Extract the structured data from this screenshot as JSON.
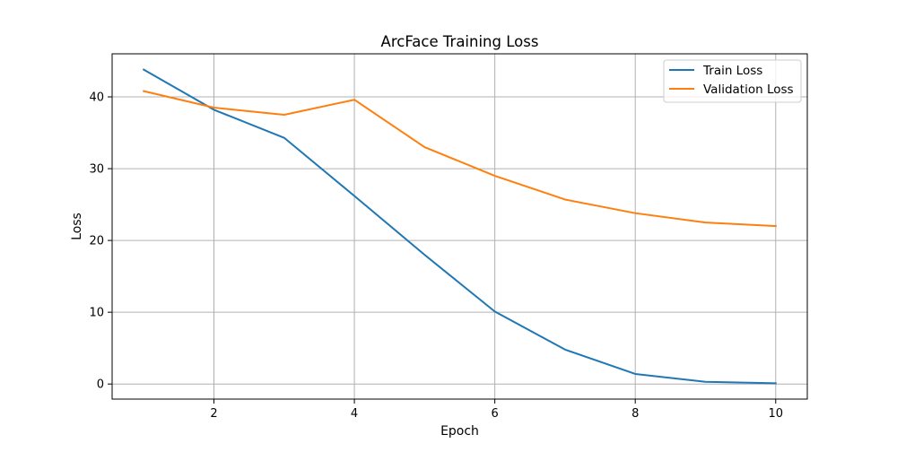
{
  "chart_data": {
    "type": "line",
    "title": "ArcFace Training Loss",
    "xlabel": "Epoch",
    "ylabel": "Loss",
    "x": [
      1,
      2,
      3,
      4,
      5,
      6,
      7,
      8,
      9,
      10
    ],
    "series": [
      {
        "name": "Train Loss",
        "color": "#1f77b4",
        "values": [
          43.8,
          38.2,
          34.3,
          26.2,
          18.0,
          10.1,
          4.8,
          1.4,
          0.3,
          0.1
        ]
      },
      {
        "name": "Validation Loss",
        "color": "#ff7f0e",
        "values": [
          40.8,
          38.5,
          37.5,
          39.6,
          33.0,
          29.0,
          25.7,
          23.8,
          22.5,
          22.0
        ]
      }
    ],
    "xlim": [
      0.55,
      10.45
    ],
    "ylim": [
      -2.1,
      46.0
    ],
    "xticks": [
      2,
      4,
      6,
      8,
      10
    ],
    "yticks": [
      0,
      10,
      20,
      30,
      40
    ],
    "grid": true,
    "legend_position": "top-right"
  }
}
